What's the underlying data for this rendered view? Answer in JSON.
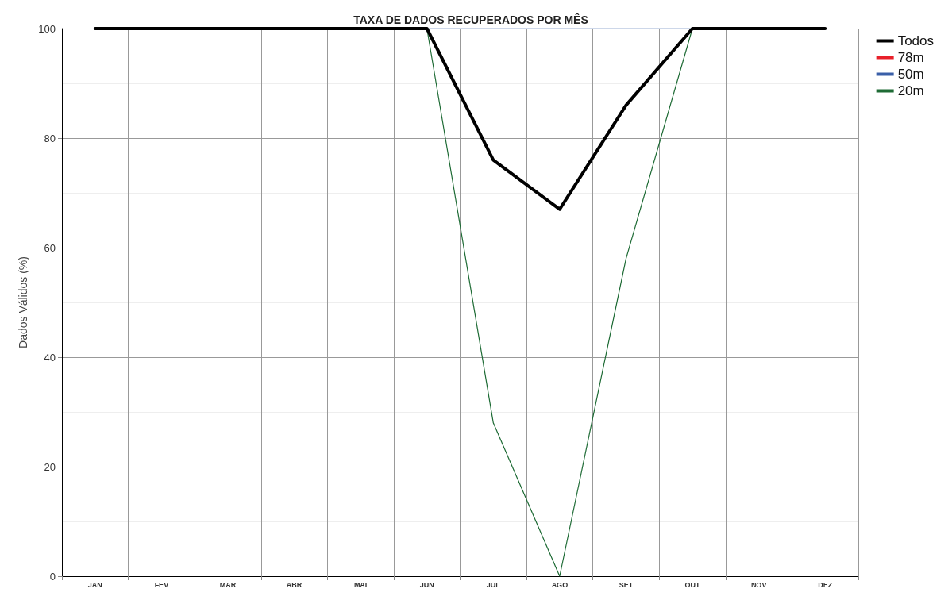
{
  "chart_data": {
    "type": "line",
    "title": "TAXA DE DADOS RECUPERADOS POR MÊS",
    "ylabel": "Dados Válidos (%)",
    "categories": [
      "JAN",
      "FEV",
      "MAR",
      "ABR",
      "MAI",
      "JUN",
      "JUL",
      "AGO",
      "SET",
      "OUT",
      "NOV",
      "DEZ"
    ],
    "series": [
      {
        "name": "Todos",
        "color": "#000000",
        "values": [
          100,
          100,
          100,
          100,
          100,
          100,
          76,
          67,
          86,
          100,
          100,
          100
        ]
      },
      {
        "name": "78m",
        "color": "#e8202a",
        "values": [
          null,
          null,
          null,
          null,
          null,
          null,
          null,
          null,
          null,
          null,
          null,
          null
        ]
      },
      {
        "name": "50m",
        "color": "#3a5fa8",
        "values": [
          null,
          null,
          null,
          null,
          null,
          100,
          100,
          100,
          100,
          100,
          null,
          null
        ]
      },
      {
        "name": "20m",
        "color": "#1e6b35",
        "values": [
          null,
          null,
          null,
          null,
          null,
          100,
          28,
          0,
          58,
          100,
          null,
          null
        ]
      }
    ],
    "ylim": [
      0,
      100
    ],
    "yticks": [
      0,
      20,
      40,
      60,
      80,
      100
    ],
    "grid": true,
    "legend": "top right",
    "marker": "none",
    "line_style": "solid"
  }
}
